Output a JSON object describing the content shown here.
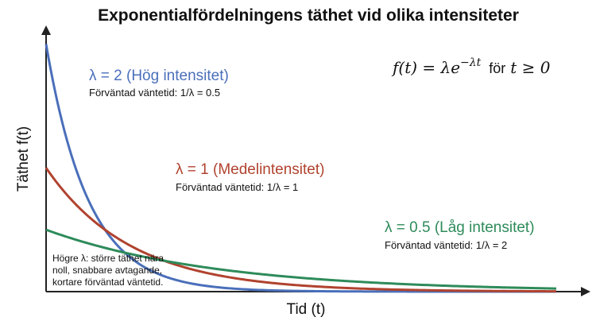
{
  "chart_data": {
    "type": "line",
    "title": "Exponentialfördelningens täthet vid olika intensiteter",
    "xlabel": "Tid (t)",
    "ylabel": "Täthet f(t)",
    "xlim": [
      0,
      6
    ],
    "ylim": [
      0,
      2.1
    ],
    "grid": false,
    "legend": "inline",
    "formula": {
      "lhs": "f(t) = λe",
      "exponent": "−λt",
      "condition_word": "för",
      "condition": "t ≥ 0"
    },
    "series": [
      {
        "name": "λ = 2 (Hög intensitet)",
        "lambda": 2,
        "subtitle": "Förväntad väntetid: 1/λ = 0.5",
        "color": "#4a6fba"
      },
      {
        "name": "λ = 1 (Medelintensitet)",
        "lambda": 1,
        "subtitle": "Förväntad väntetid: 1/λ = 1",
        "color": "#b0432f"
      },
      {
        "name": "λ = 0.5 (Låg intensitet)",
        "lambda": 0.5,
        "subtitle": "Förväntad väntetid: 1/λ = 2",
        "color": "#2e8b5a"
      }
    ],
    "note": [
      "Högre λ: större täthet nära",
      "noll, snabbare avtagande,",
      "kortare förväntad väntetid."
    ]
  }
}
